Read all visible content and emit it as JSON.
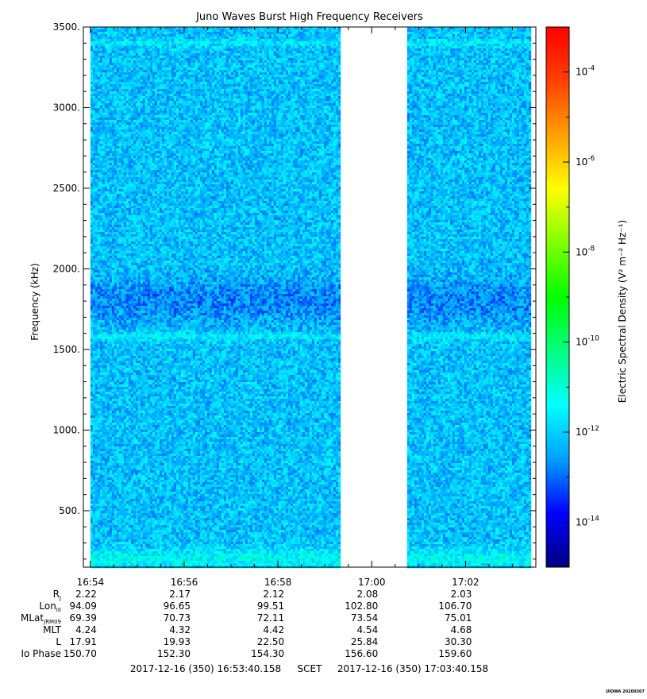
{
  "chart_data": {
    "type": "heatmap",
    "title": "Juno Waves Burst High Frequency Receivers",
    "ylabel": "Frequency (kHz)",
    "ylim": [
      150,
      3500
    ],
    "yticks": [
      {
        "value": 500,
        "label": "500."
      },
      {
        "value": 1000,
        "label": "1000."
      },
      {
        "value": 1500,
        "label": "1500."
      },
      {
        "value": 2000,
        "label": "2000."
      },
      {
        "value": 2500,
        "label": "2500."
      },
      {
        "value": 3000,
        "label": "3000."
      },
      {
        "value": 3500,
        "label": "3500."
      }
    ],
    "x_minutes_range": [
      -0.15,
      9.5
    ],
    "xticks": [
      {
        "minute": 0,
        "label": "16:54"
      },
      {
        "minute": 2,
        "label": "16:56"
      },
      {
        "minute": 4,
        "label": "16:58"
      },
      {
        "minute": 6,
        "label": "17:00"
      },
      {
        "minute": 8,
        "label": "17:02"
      }
    ],
    "data_gap_minutes": [
      5.35,
      6.75
    ],
    "background_log_level": -12,
    "bands": [
      {
        "frequency_khz": 200,
        "log_level": -11.2,
        "description": "low-frequency enhancement"
      },
      {
        "frequency_khz": 1580,
        "log_level": -11.3,
        "description": "narrow band"
      },
      {
        "frequency_khz": 3400,
        "log_level": -11.4,
        "description": "narrow band"
      },
      {
        "frequency_khz": 1800,
        "log_level": -12.6,
        "description": "weaker striated region"
      }
    ],
    "colorbar": {
      "label": "Electric Spectral Density (V² m⁻² Hz⁻¹)",
      "log_range": [
        -15,
        -3
      ],
      "ticks": [
        {
          "value": -14,
          "base": "10",
          "exp": "-14"
        },
        {
          "value": -12,
          "base": "10",
          "exp": "-12"
        },
        {
          "value": -10,
          "base": "10",
          "exp": "-10"
        },
        {
          "value": -8,
          "base": "10",
          "exp": "-8"
        },
        {
          "value": -6,
          "base": "10",
          "exp": "-6"
        },
        {
          "value": -4,
          "base": "10",
          "exp": "-4"
        }
      ],
      "colors": [
        "#000080",
        "#0000ff",
        "#00a0ff",
        "#00ffff",
        "#00ff80",
        "#00ff00",
        "#80ff00",
        "#ffff00",
        "#ffa000",
        "#ff4000",
        "#ff0000"
      ]
    },
    "ephemeris": [
      {
        "label": "R",
        "sub": "J",
        "values": [
          "2.22",
          "2.17",
          "2.12",
          "2.08",
          "2.03"
        ]
      },
      {
        "label": "Lon",
        "sub": "III",
        "values": [
          "94.09",
          "96.65",
          "99.51",
          "102.80",
          "106.70"
        ]
      },
      {
        "label": "MLat",
        "sub": "JRM09",
        "values": [
          "69.39",
          "70.73",
          "72.11",
          "73.54",
          "75.01"
        ]
      },
      {
        "label": "MLT",
        "sub": "",
        "values": [
          "4.24",
          "4.32",
          "4.42",
          "4.54",
          "4.68"
        ]
      },
      {
        "label": "L",
        "sub": "",
        "values": [
          "17.91",
          "19.93",
          "22.50",
          "25.84",
          "30.30"
        ]
      },
      {
        "label": "Io Phase",
        "sub": "",
        "values": [
          "150.70",
          "152.30",
          "154.30",
          "156.60",
          "159.60"
        ]
      }
    ]
  },
  "footer": {
    "start": "2017-12-16 (350) 16:53:40.158",
    "frame": "SCET",
    "end": "2017-12-16 (350) 17:03:40.158"
  },
  "stamp": "UIOWA 20200307"
}
